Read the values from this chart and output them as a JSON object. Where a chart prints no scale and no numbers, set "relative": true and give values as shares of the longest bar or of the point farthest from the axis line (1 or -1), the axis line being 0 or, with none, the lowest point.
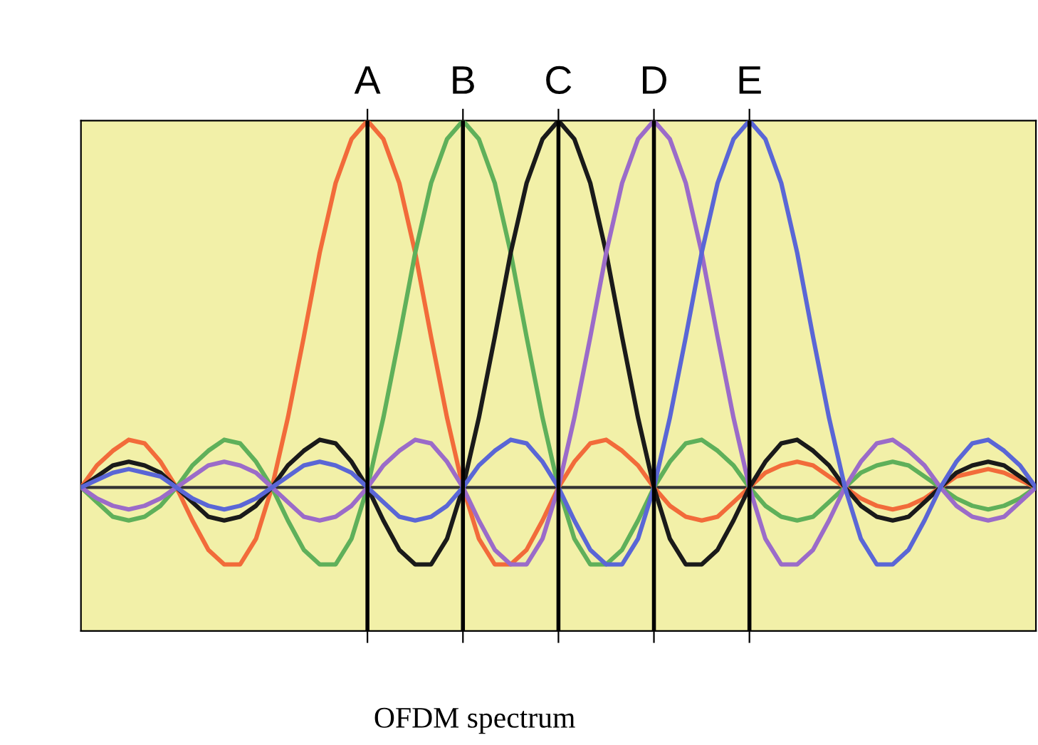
{
  "chart_data": {
    "type": "line",
    "relative": true,
    "categories": [
      null,
      null,
      null,
      null,
      null,
      null,
      null,
      null,
      null,
      null,
      null,
      null,
      null,
      null,
      null,
      null,
      null,
      null,
      "A",
      null,
      null,
      null,
      null,
      null,
      "B",
      null,
      null,
      null,
      null,
      null,
      "C",
      null,
      null,
      null,
      null,
      null,
      "D",
      null,
      null,
      null,
      null,
      null,
      "E",
      null,
      null,
      null,
      null,
      null,
      null,
      null,
      null,
      null,
      null,
      null,
      null,
      null,
      null,
      null,
      null,
      null,
      null
    ],
    "series": [
      {
        "color": "#f26b3a",
        "values": [
          0,
          0.06,
          0.1,
          0.13,
          0.12,
          0.07,
          0,
          -0.09,
          -0.17,
          -0.21,
          -0.21,
          -0.14,
          0,
          0.19,
          0.41,
          0.64,
          0.83,
          0.95,
          1,
          0.95,
          0.83,
          0.64,
          0.41,
          0.19,
          0,
          -0.14,
          -0.21,
          -0.21,
          -0.17,
          -0.09,
          0,
          0.07,
          0.12,
          0.13,
          0.1,
          0.06,
          0,
          -0.05,
          -0.08,
          -0.09,
          -0.08,
          -0.04,
          0,
          0.04,
          0.06,
          0.07,
          0.06,
          0.03,
          0,
          -0.03,
          -0.05,
          -0.06,
          -0.05,
          -0.03,
          0,
          0.03,
          0.04,
          0.05,
          0.04,
          0.02,
          0
        ]
      },
      {
        "color": "#5fb05a",
        "values": [
          0,
          -0.04,
          -0.08,
          -0.09,
          -0.08,
          -0.05,
          0,
          0.06,
          0.1,
          0.13,
          0.12,
          0.07,
          0,
          -0.09,
          -0.17,
          -0.21,
          -0.21,
          -0.14,
          0,
          0.19,
          0.41,
          0.64,
          0.83,
          0.95,
          1,
          0.95,
          0.83,
          0.64,
          0.41,
          0.19,
          0,
          -0.14,
          -0.21,
          -0.21,
          -0.17,
          -0.09,
          0,
          0.07,
          0.12,
          0.13,
          0.1,
          0.06,
          0,
          -0.05,
          -0.08,
          -0.09,
          -0.08,
          -0.04,
          0,
          0.04,
          0.06,
          0.07,
          0.06,
          0.03,
          0,
          -0.03,
          -0.05,
          -0.06,
          -0.05,
          -0.03,
          0
        ]
      },
      {
        "color": "#1a1a1a",
        "values": [
          0,
          0.03,
          0.06,
          0.07,
          0.06,
          0.04,
          0,
          -0.04,
          -0.08,
          -0.09,
          -0.08,
          -0.05,
          0,
          0.06,
          0.1,
          0.13,
          0.12,
          0.07,
          0,
          -0.09,
          -0.17,
          -0.21,
          -0.21,
          -0.14,
          0,
          0.19,
          0.41,
          0.64,
          0.83,
          0.95,
          1,
          0.95,
          0.83,
          0.64,
          0.41,
          0.19,
          0,
          -0.14,
          -0.21,
          -0.21,
          -0.17,
          -0.09,
          0,
          0.07,
          0.12,
          0.13,
          0.1,
          0.06,
          0,
          -0.05,
          -0.08,
          -0.09,
          -0.08,
          -0.04,
          0,
          0.04,
          0.06,
          0.07,
          0.06,
          0.03,
          0
        ]
      },
      {
        "color": "#9b6bc9",
        "values": [
          0,
          -0.03,
          -0.05,
          -0.06,
          -0.05,
          -0.03,
          0,
          0.03,
          0.06,
          0.07,
          0.06,
          0.04,
          0,
          -0.04,
          -0.08,
          -0.09,
          -0.08,
          -0.05,
          0,
          0.06,
          0.1,
          0.13,
          0.12,
          0.07,
          0,
          -0.09,
          -0.17,
          -0.21,
          -0.21,
          -0.14,
          0,
          0.19,
          0.41,
          0.64,
          0.83,
          0.95,
          1,
          0.95,
          0.83,
          0.64,
          0.41,
          0.19,
          0,
          -0.14,
          -0.21,
          -0.21,
          -0.17,
          -0.09,
          0,
          0.07,
          0.12,
          0.13,
          0.1,
          0.06,
          0,
          -0.05,
          -0.08,
          -0.09,
          -0.08,
          -0.04,
          0
        ]
      },
      {
        "color": "#5a66d6",
        "values": [
          0,
          0.02,
          0.04,
          0.05,
          0.04,
          0.03,
          0,
          -0.03,
          -0.05,
          -0.06,
          -0.05,
          -0.03,
          0,
          0.03,
          0.06,
          0.07,
          0.06,
          0.04,
          0,
          -0.04,
          -0.08,
          -0.09,
          -0.08,
          -0.05,
          0,
          0.06,
          0.1,
          0.13,
          0.12,
          0.07,
          0,
          -0.09,
          -0.17,
          -0.21,
          -0.21,
          -0.14,
          0,
          0.19,
          0.41,
          0.64,
          0.83,
          0.95,
          1,
          0.95,
          0.83,
          0.64,
          0.41,
          0.19,
          0,
          -0.14,
          -0.21,
          -0.21,
          -0.17,
          -0.09,
          0,
          0.07,
          0.12,
          0.13,
          0.1,
          0.06,
          0
        ]
      }
    ],
    "ref_lines": [
      {
        "axis": "x",
        "value": "A",
        "color": "#000000"
      },
      {
        "axis": "x",
        "value": "B",
        "color": "#000000"
      },
      {
        "axis": "x",
        "value": "C",
        "color": "#000000"
      },
      {
        "axis": "x",
        "value": "D",
        "color": "#000000"
      },
      {
        "axis": "x",
        "value": "E",
        "color": "#000000"
      }
    ],
    "annotations": [
      "OFDM spectrum"
    ],
    "legend": false,
    "line_style": "solid",
    "marker": "none"
  }
}
